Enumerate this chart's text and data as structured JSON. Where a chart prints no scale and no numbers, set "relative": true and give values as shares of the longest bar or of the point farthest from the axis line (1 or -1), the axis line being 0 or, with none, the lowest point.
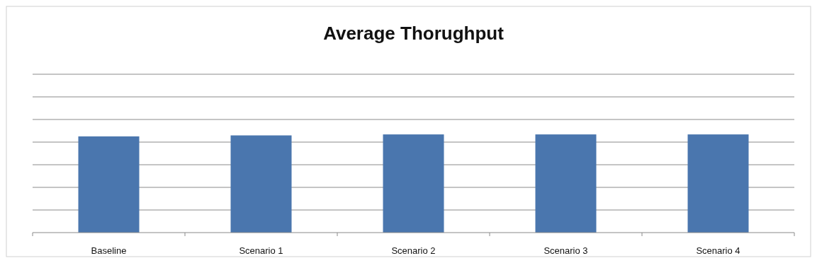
{
  "chart_data": {
    "type": "bar",
    "title": "Average Thorughput",
    "categories": [
      "Baseline",
      "Scenario 1",
      "Scenario 2",
      "Scenario 3",
      "Scenario 4"
    ],
    "values": [
      0.98,
      0.99,
      1,
      1,
      1
    ],
    "color": "#4a76ae",
    "relative": true,
    "grid": "y"
  }
}
